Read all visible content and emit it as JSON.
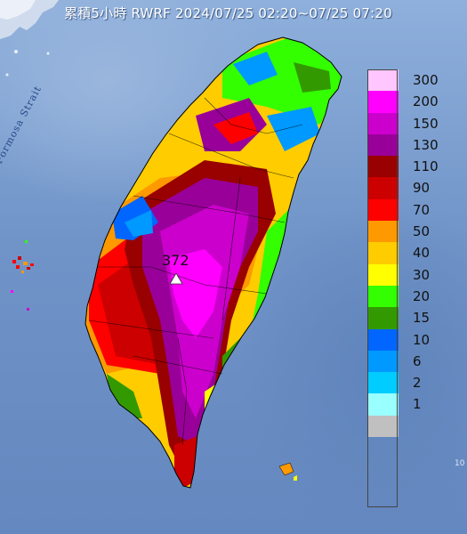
{
  "title": "累積5小時 RWRF 2024/07/25 02:20~07/25 07:20",
  "strait_label": "Formosa Strait",
  "max": {
    "value": "372",
    "marker": "triangle-icon"
  },
  "legend": {
    "items": [
      {
        "label": "300",
        "color": "#ffc6ff"
      },
      {
        "label": "200",
        "color": "#ff00ff"
      },
      {
        "label": "150",
        "color": "#cc00cc"
      },
      {
        "label": "130",
        "color": "#990099"
      },
      {
        "label": "110",
        "color": "#990000"
      },
      {
        "label": "90",
        "color": "#cc0000"
      },
      {
        "label": "70",
        "color": "#ff0000"
      },
      {
        "label": "50",
        "color": "#ff9900"
      },
      {
        "label": "40",
        "color": "#ffcc00"
      },
      {
        "label": "30",
        "color": "#ffff00"
      },
      {
        "label": "20",
        "color": "#33ff00"
      },
      {
        "label": "15",
        "color": "#339900"
      },
      {
        "label": "10",
        "color": "#0066ff"
      },
      {
        "label": "6",
        "color": "#0099ff"
      },
      {
        "label": "2",
        "color": "#00ccff"
      },
      {
        "label": "1",
        "color": "#99ffff"
      },
      {
        "label": "",
        "color": "#c0c0c0"
      }
    ]
  },
  "corner_mark": "10"
}
